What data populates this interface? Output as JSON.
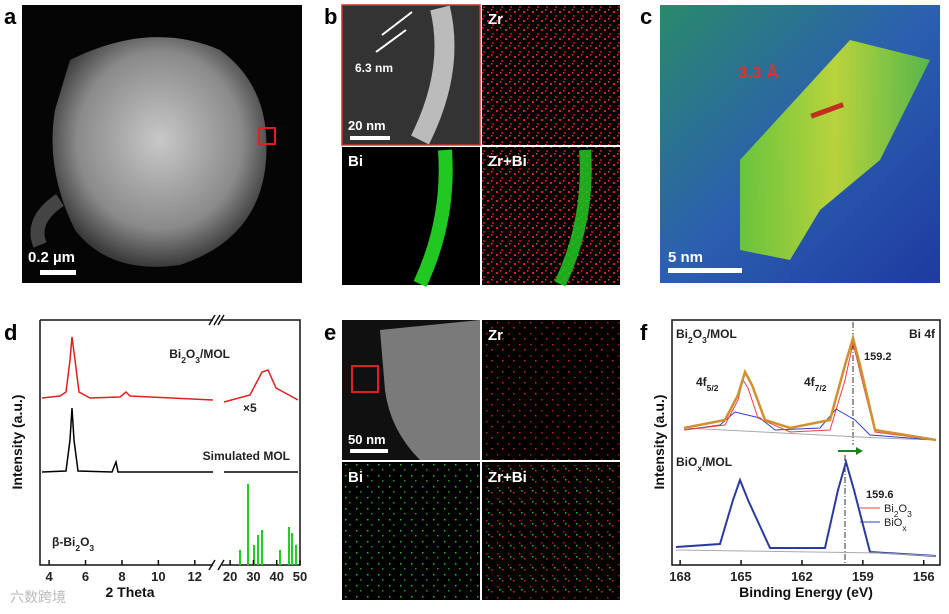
{
  "panels": {
    "a": {
      "label": "a",
      "scale_bar": "0.2 µm"
    },
    "b": {
      "label": "b",
      "width_label": "6.3 nm",
      "scale_bar": "20 nm",
      "maps": [
        "Zr",
        "Bi",
        "Zr+Bi"
      ]
    },
    "c": {
      "label": "c",
      "spacing": "3.3 Å",
      "scale_bar": "5 nm"
    },
    "d": {
      "label": "d",
      "y_label": "Intensity (a.u.)",
      "x_label": "2 Theta",
      "xlim_left": [
        3.5,
        13
      ],
      "xticks_left": [
        4,
        6,
        8,
        10,
        12
      ],
      "xlim_right": [
        16.5,
        50
      ],
      "xticks_right": [
        20,
        30,
        40,
        50
      ],
      "traces": [
        {
          "main": "Bi",
          "s1": "2",
          "m2": "O",
          "s2": "3",
          "tail": "/MOL"
        },
        {
          "text": "Simulated MOL"
        },
        {
          "main": "β-Bi",
          "s1": "2",
          "m2": "O",
          "s2": "3",
          "tail": ""
        }
      ],
      "magnification": "×5"
    },
    "e": {
      "label": "e",
      "scale_bar": "50 nm",
      "maps": [
        "Zr",
        "Bi",
        "Zr+Bi"
      ]
    },
    "f": {
      "label": "f",
      "y_label": "Intensity (a.u.)",
      "x_label": "Binding Energy (eV)",
      "xlim": [
        168.4,
        155.2
      ],
      "xticks": [
        168,
        165,
        162,
        159,
        156
      ],
      "top": {
        "main": "Bi",
        "s1": "2",
        "m2": "O",
        "s2": "3",
        "tail": "/MOL"
      },
      "region": "Bi 4f",
      "peak_top": "159.2",
      "p1": {
        "main": "4f",
        "sub": "5/2"
      },
      "p2": {
        "main": "4f",
        "sub": "7/2"
      },
      "legend": [
        {
          "main": "Bi",
          "s1": "2",
          "m2": "O",
          "s2": "3"
        },
        {
          "main": "BiO",
          "s1": "x"
        }
      ],
      "bottom": {
        "main": "BiO",
        "s1": "x",
        "tail": "/MOL"
      },
      "peak_bottom": "159.6"
    }
  },
  "watermark": "六数跨境"
}
